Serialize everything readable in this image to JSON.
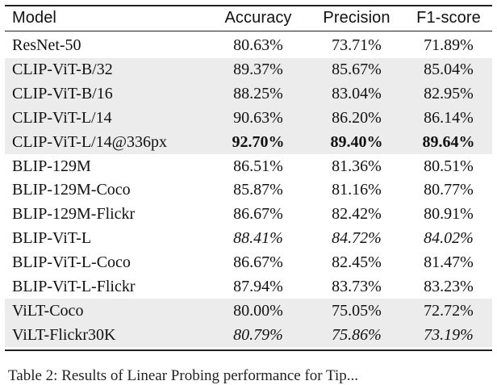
{
  "table": {
    "headers": [
      "Model",
      "Accuracy",
      "Precision",
      "F1-score"
    ],
    "rows": [
      {
        "model": "ResNet-50",
        "accuracy": "80.63%",
        "precision": "73.71%",
        "f1": "71.89%",
        "shaded": false,
        "style": "normal"
      },
      {
        "model": "CLIP-ViT-B/32",
        "accuracy": "89.37%",
        "precision": "85.67%",
        "f1": "85.04%",
        "shaded": true,
        "style": "normal"
      },
      {
        "model": "CLIP-ViT-B/16",
        "accuracy": "88.25%",
        "precision": "83.04%",
        "f1": "82.95%",
        "shaded": true,
        "style": "normal"
      },
      {
        "model": "CLIP-ViT-L/14",
        "accuracy": "90.63%",
        "precision": "86.20%",
        "f1": "86.14%",
        "shaded": true,
        "style": "normal"
      },
      {
        "model": "CLIP-ViT-L/14@336px",
        "accuracy": "92.70%",
        "precision": "89.40%",
        "f1": "89.64%",
        "shaded": true,
        "style": "bold"
      },
      {
        "model": "BLIP-129M",
        "accuracy": "86.51%",
        "precision": "81.36%",
        "f1": "80.51%",
        "shaded": false,
        "style": "normal"
      },
      {
        "model": "BLIP-129M-Coco",
        "accuracy": "85.87%",
        "precision": "81.16%",
        "f1": "80.77%",
        "shaded": false,
        "style": "normal"
      },
      {
        "model": "BLIP-129M-Flickr",
        "accuracy": "86.67%",
        "precision": "82.42%",
        "f1": "80.91%",
        "shaded": false,
        "style": "normal"
      },
      {
        "model": "BLIP-ViT-L",
        "accuracy": "88.41%",
        "precision": "84.72%",
        "f1": "84.02%",
        "shaded": false,
        "style": "italic"
      },
      {
        "model": "BLIP-ViT-L-Coco",
        "accuracy": "86.67%",
        "precision": "82.45%",
        "f1": "81.47%",
        "shaded": false,
        "style": "normal"
      },
      {
        "model": "BLIP-ViT-L-Flickr",
        "accuracy": "87.94%",
        "precision": "83.73%",
        "f1": "83.23%",
        "shaded": false,
        "style": "normal"
      },
      {
        "model": "ViLT-Coco",
        "accuracy": "80.00%",
        "precision": "75.05%",
        "f1": "72.72%",
        "shaded": true,
        "style": "normal"
      },
      {
        "model": "ViLT-Flickr30K",
        "accuracy": "80.79%",
        "precision": "75.86%",
        "f1": "73.19%",
        "shaded": true,
        "style": "italic"
      }
    ]
  },
  "caption": "Table 2: Results of Linear Probing performance for Tip..."
}
